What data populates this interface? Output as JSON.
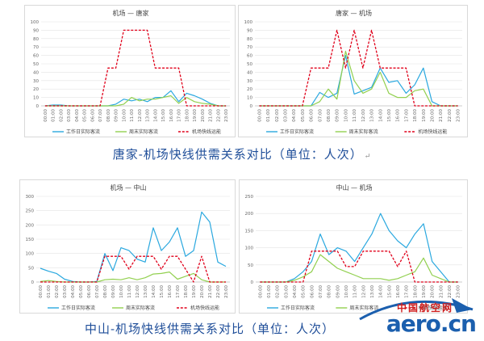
{
  "captions": {
    "top": "唐家-机场快线供需关系对比（单位：人次）",
    "top_mark": "↵",
    "bottom": "中山-机场快线供需关系对比（单位：人次）"
  },
  "watermark": {
    "cn": "中国航空网",
    "domain": "aero.cn"
  },
  "colors": {
    "weekday": "#2aa8df",
    "weekend": "#92d050",
    "capacity": "#e0001a"
  },
  "chart_data": [
    {
      "type": "line",
      "title": "机场 — 唐家",
      "categories": [
        "00:00",
        "01:00",
        "02:00",
        "03:00",
        "04:00",
        "05:00",
        "06:00",
        "07:00",
        "08:00",
        "09:00",
        "10:00",
        "11:00",
        "12:00",
        "13:00",
        "14:00",
        "15:00",
        "16:00",
        "17:00",
        "18:00",
        "19:00",
        "20:00",
        "21:00",
        "22:00",
        "23:00"
      ],
      "ylim": [
        0,
        100
      ],
      "yticks": [
        0,
        10,
        20,
        30,
        40,
        50,
        60,
        70,
        80,
        90,
        100
      ],
      "series": [
        {
          "name": "工作日实际客流",
          "style": "solid",
          "values": [
            0,
            1,
            1,
            0,
            0,
            0,
            0,
            0,
            0,
            2,
            8,
            6,
            8,
            5,
            10,
            10,
            18,
            5,
            15,
            12,
            8,
            3,
            0,
            0
          ]
        },
        {
          "name": "周末实际客流",
          "style": "solid",
          "values": [
            0,
            0,
            0,
            0,
            0,
            0,
            0,
            0,
            0,
            0,
            2,
            10,
            6,
            8,
            8,
            10,
            12,
            3,
            10,
            5,
            3,
            2,
            0,
            0
          ]
        },
        {
          "name": "机场快线运能",
          "style": "dashed",
          "values": [
            0,
            0,
            0,
            0,
            0,
            0,
            0,
            0,
            45,
            45,
            90,
            90,
            90,
            90,
            45,
            45,
            45,
            45,
            0,
            0,
            0,
            0,
            0,
            0
          ]
        }
      ]
    },
    {
      "type": "line",
      "title": "唐家 — 机场",
      "categories": [
        "00:00",
        "01:00",
        "02:00",
        "03:00",
        "04:00",
        "05:00",
        "06:00",
        "07:00",
        "08:00",
        "09:00",
        "10:00",
        "11:00",
        "12:00",
        "13:00",
        "14:00",
        "15:00",
        "16:00",
        "17:00",
        "18:00",
        "19:00",
        "20:00",
        "21:00",
        "22:00",
        "23:00"
      ],
      "ylim": [
        0,
        100
      ],
      "yticks": [
        0,
        10,
        20,
        30,
        40,
        50,
        60,
        70,
        80,
        90,
        100
      ],
      "series": [
        {
          "name": "工作日实际客流",
          "style": "solid",
          "values": [
            0,
            0,
            0,
            0,
            0,
            0,
            0,
            16,
            10,
            15,
            60,
            14,
            18,
            22,
            45,
            28,
            30,
            15,
            25,
            45,
            5,
            0,
            0,
            0
          ]
        },
        {
          "name": "周末实际客流",
          "style": "solid",
          "values": [
            0,
            0,
            0,
            0,
            0,
            0,
            0,
            5,
            20,
            8,
            65,
            30,
            15,
            20,
            40,
            15,
            10,
            10,
            18,
            20,
            0,
            0,
            0,
            0
          ]
        },
        {
          "name": "机场快线运能",
          "style": "dashed",
          "values": [
            0,
            0,
            0,
            0,
            0,
            0,
            45,
            45,
            45,
            90,
            45,
            90,
            45,
            90,
            45,
            45,
            45,
            45,
            0,
            0,
            0,
            0,
            0,
            0
          ]
        }
      ]
    },
    {
      "type": "line",
      "title": "机场 — 中山",
      "categories": [
        "00:00",
        "01:00",
        "02:00",
        "03:00",
        "04:00",
        "05:00",
        "06:00",
        "07:00",
        "08:00",
        "09:00",
        "10:00",
        "11:00",
        "12:00",
        "13:00",
        "14:00",
        "15:00",
        "16:00",
        "17:00",
        "18:00",
        "19:00",
        "20:00",
        "21:00",
        "22:00",
        "23:00"
      ],
      "ylim": [
        0,
        300
      ],
      "yticks": [
        0,
        50,
        100,
        150,
        200,
        250,
        300
      ],
      "series": [
        {
          "name": "工作日实际客流",
          "style": "solid",
          "values": [
            48,
            38,
            30,
            10,
            2,
            0,
            0,
            2,
            100,
            40,
            120,
            110,
            80,
            70,
            190,
            110,
            140,
            190,
            90,
            110,
            245,
            210,
            70,
            55
          ]
        },
        {
          "name": "周末实际客流",
          "style": "solid",
          "values": [
            2,
            5,
            2,
            0,
            0,
            0,
            0,
            0,
            8,
            10,
            8,
            15,
            8,
            15,
            28,
            30,
            35,
            10,
            20,
            30,
            8,
            0,
            0,
            0
          ]
        },
        {
          "name": "机场快线运能",
          "style": "dashed",
          "values": [
            0,
            0,
            0,
            0,
            0,
            0,
            0,
            0,
            90,
            90,
            90,
            45,
            90,
            90,
            90,
            45,
            90,
            90,
            45,
            0,
            90,
            0,
            0,
            0
          ]
        }
      ]
    },
    {
      "type": "line",
      "title": "中山 — 机场",
      "categories": [
        "00:00",
        "01:00",
        "02:00",
        "03:00",
        "04:00",
        "05:00",
        "06:00",
        "07:00",
        "08:00",
        "09:00",
        "10:00",
        "11:00",
        "12:00",
        "13:00",
        "14:00",
        "15:00",
        "16:00",
        "17:00",
        "18:00",
        "19:00",
        "20:00",
        "21:00",
        "22:00",
        "23:00"
      ],
      "ylim": [
        0,
        250
      ],
      "yticks": [
        0,
        50,
        100,
        150,
        200,
        250
      ],
      "series": [
        {
          "name": "工作日实际客流",
          "style": "solid",
          "values": [
            0,
            0,
            0,
            0,
            10,
            30,
            60,
            140,
            80,
            100,
            90,
            60,
            100,
            140,
            200,
            150,
            120,
            100,
            140,
            170,
            60,
            30,
            0,
            0
          ]
        },
        {
          "name": "周末实际客流",
          "style": "solid",
          "values": [
            0,
            0,
            0,
            0,
            5,
            15,
            30,
            80,
            60,
            40,
            30,
            20,
            10,
            10,
            10,
            5,
            10,
            20,
            30,
            70,
            20,
            10,
            0,
            0
          ]
        },
        {
          "name": "机场快线运能",
          "style": "dashed",
          "values": [
            0,
            0,
            0,
            0,
            0,
            0,
            90,
            90,
            90,
            90,
            45,
            45,
            90,
            90,
            90,
            90,
            45,
            90,
            0,
            0,
            0,
            0,
            0,
            0
          ]
        }
      ]
    }
  ]
}
